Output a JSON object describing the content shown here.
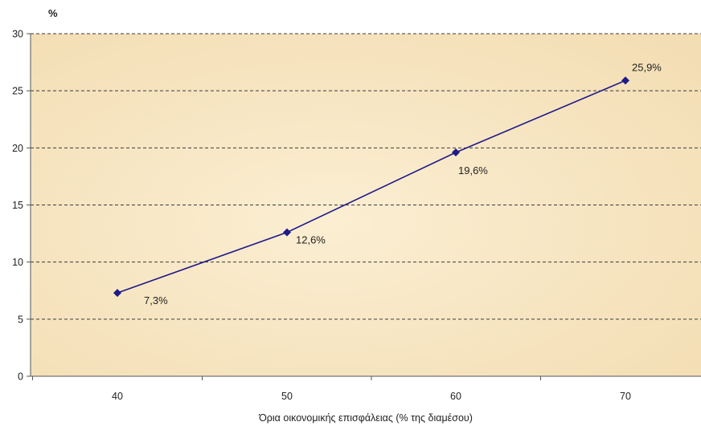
{
  "chart_data": {
    "type": "line",
    "ylabel": "%",
    "xlabel": "Όρια οικονομικής επισφάλειας (% της διαμέσου)",
    "x": [
      40,
      50,
      60,
      70
    ],
    "x_tick_labels": [
      "40",
      "50",
      "60",
      "70"
    ],
    "series": [
      {
        "values": [
          7.3,
          12.6,
          19.6,
          25.9
        ],
        "data_labels": [
          "7,3%",
          "12,6%",
          "19,6%",
          "25,9%"
        ],
        "color": "#1f1a8a",
        "marker": "diamond"
      }
    ],
    "ylim": [
      0,
      30
    ],
    "y_ticks": [
      0,
      5,
      10,
      15,
      20,
      25,
      30
    ],
    "y_tick_labels": [
      "0",
      "5",
      "10",
      "15",
      "20",
      "25",
      "30"
    ],
    "grid": "horizontal dashed",
    "colors": {
      "plot_background": "#f7e6c2",
      "grid": "#3a3a3a",
      "axis": "#555555"
    }
  }
}
